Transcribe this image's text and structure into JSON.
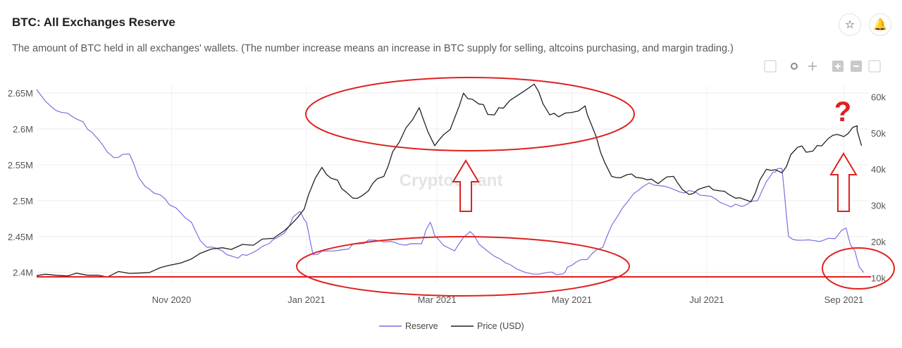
{
  "header": {
    "title": "BTC: All Exchanges Reserve",
    "subtitle": "The amount of BTC held in all exchanges' wallets. (The number increase means an increase in BTC supply for selling, altcoins purchasing, and margin trading.)",
    "favorite_icon": "star-icon",
    "alert_icon": "bell-icon"
  },
  "modebar": [
    "camera-icon",
    "zoom-icon",
    "pan-icon",
    "zoom-in-icon",
    "zoom-out-icon",
    "autoscale-icon"
  ],
  "watermark": "CryptoQuant",
  "annotation": {
    "question_mark": "?"
  },
  "colors": {
    "reserve": "#7b6fe0",
    "price": "#222222",
    "annotation": "#e02020"
  },
  "chart_data": {
    "type": "line",
    "x_ticks": [
      "Nov 2020",
      "Jan 2021",
      "Mar 2021",
      "May 2021",
      "Jul 2021",
      "Sep 2021"
    ],
    "x_range": [
      "2020-09-01",
      "2021-09-12"
    ],
    "y_left": {
      "ticks": [
        "2.4M",
        "2.45M",
        "2.5M",
        "2.55M",
        "2.6M",
        "2.65M"
      ],
      "range": [
        2385000,
        2660000
      ]
    },
    "y_right": {
      "ticks": [
        "10k",
        "20k",
        "30k",
        "40k",
        "50k",
        "60k"
      ],
      "range": [
        8500,
        63000
      ]
    },
    "legend": [
      "Reserve",
      "Price (USD)"
    ],
    "legend_position": "bottom-center",
    "series": [
      {
        "name": "Reserve",
        "axis": "left",
        "points": [
          [
            "2020-09-01",
            2655000
          ],
          [
            "2020-09-08",
            2630000
          ],
          [
            "2020-09-15",
            2622000
          ],
          [
            "2020-09-22",
            2610000
          ],
          [
            "2020-09-29",
            2585000
          ],
          [
            "2020-10-06",
            2560000
          ],
          [
            "2020-10-13",
            2565000
          ],
          [
            "2020-10-20",
            2520000
          ],
          [
            "2020-10-27",
            2508000
          ],
          [
            "2020-11-03",
            2490000
          ],
          [
            "2020-11-10",
            2470000
          ],
          [
            "2020-11-17",
            2435000
          ],
          [
            "2020-11-24",
            2430000
          ],
          [
            "2020-12-01",
            2420000
          ],
          [
            "2020-12-08",
            2428000
          ],
          [
            "2020-12-15",
            2440000
          ],
          [
            "2020-12-22",
            2455000
          ],
          [
            "2020-12-29",
            2485000
          ],
          [
            "2021-01-01",
            2470000
          ],
          [
            "2021-01-04",
            2425000
          ],
          [
            "2021-01-11",
            2430000
          ],
          [
            "2021-01-18",
            2432000
          ],
          [
            "2021-01-25",
            2440000
          ],
          [
            "2021-02-01",
            2445000
          ],
          [
            "2021-02-08",
            2443000
          ],
          [
            "2021-02-15",
            2438000
          ],
          [
            "2021-02-22",
            2440000
          ],
          [
            "2021-02-26",
            2470000
          ],
          [
            "2021-03-02",
            2445000
          ],
          [
            "2021-03-09",
            2430000
          ],
          [
            "2021-03-16",
            2457000
          ],
          [
            "2021-03-23",
            2432000
          ],
          [
            "2021-03-30",
            2418000
          ],
          [
            "2021-04-06",
            2405000
          ],
          [
            "2021-04-13",
            2398000
          ],
          [
            "2021-04-20",
            2400000
          ],
          [
            "2021-04-27",
            2398000
          ],
          [
            "2021-05-01",
            2410000
          ],
          [
            "2021-05-08",
            2418000
          ],
          [
            "2021-05-15",
            2435000
          ],
          [
            "2021-05-22",
            2480000
          ],
          [
            "2021-05-29",
            2510000
          ],
          [
            "2021-06-05",
            2525000
          ],
          [
            "2021-06-12",
            2520000
          ],
          [
            "2021-06-19",
            2512000
          ],
          [
            "2021-06-26",
            2512000
          ],
          [
            "2021-07-03",
            2506000
          ],
          [
            "2021-07-10",
            2494000
          ],
          [
            "2021-07-17",
            2492000
          ],
          [
            "2021-07-24",
            2500000
          ],
          [
            "2021-07-31",
            2540000
          ],
          [
            "2021-08-04",
            2545000
          ],
          [
            "2021-08-07",
            2450000
          ],
          [
            "2021-08-14",
            2445000
          ],
          [
            "2021-08-21",
            2443000
          ],
          [
            "2021-08-28",
            2447000
          ],
          [
            "2021-09-02",
            2462000
          ],
          [
            "2021-09-06",
            2430000
          ],
          [
            "2021-09-10",
            2400000
          ]
        ]
      },
      {
        "name": "Price (USD)",
        "axis": "right",
        "points": [
          [
            "2020-09-01",
            10600
          ],
          [
            "2020-09-15",
            10500
          ],
          [
            "2020-09-29",
            10700
          ],
          [
            "2020-10-13",
            11200
          ],
          [
            "2020-10-27",
            12800
          ],
          [
            "2020-11-10",
            15200
          ],
          [
            "2020-11-24",
            18300
          ],
          [
            "2020-12-08",
            19000
          ],
          [
            "2020-12-22",
            23000
          ],
          [
            "2020-12-31",
            29000
          ],
          [
            "2021-01-08",
            40500
          ],
          [
            "2021-01-15",
            37000
          ],
          [
            "2021-01-22",
            32000
          ],
          [
            "2021-01-29",
            34000
          ],
          [
            "2021-02-05",
            38000
          ],
          [
            "2021-02-12",
            47500
          ],
          [
            "2021-02-21",
            57000
          ],
          [
            "2021-02-28",
            46500
          ],
          [
            "2021-03-07",
            51000
          ],
          [
            "2021-03-13",
            61000
          ],
          [
            "2021-03-20",
            58000
          ],
          [
            "2021-03-27",
            55000
          ],
          [
            "2021-04-03",
            59000
          ],
          [
            "2021-04-14",
            63500
          ],
          [
            "2021-04-21",
            55000
          ],
          [
            "2021-04-28",
            55500
          ],
          [
            "2021-05-07",
            57500
          ],
          [
            "2021-05-12",
            49000
          ],
          [
            "2021-05-19",
            38000
          ],
          [
            "2021-05-26",
            38500
          ],
          [
            "2021-06-02",
            37500
          ],
          [
            "2021-06-09",
            36000
          ],
          [
            "2021-06-16",
            38000
          ],
          [
            "2021-06-23",
            33000
          ],
          [
            "2021-06-30",
            35000
          ],
          [
            "2021-07-07",
            34000
          ],
          [
            "2021-07-14",
            32000
          ],
          [
            "2021-07-21",
            31000
          ],
          [
            "2021-07-28",
            40000
          ],
          [
            "2021-08-04",
            39000
          ],
          [
            "2021-08-11",
            46000
          ],
          [
            "2021-08-18",
            45000
          ],
          [
            "2021-08-25",
            48500
          ],
          [
            "2021-09-01",
            49000
          ],
          [
            "2021-09-07",
            52000
          ],
          [
            "2021-09-09",
            46500
          ]
        ]
      }
    ]
  }
}
